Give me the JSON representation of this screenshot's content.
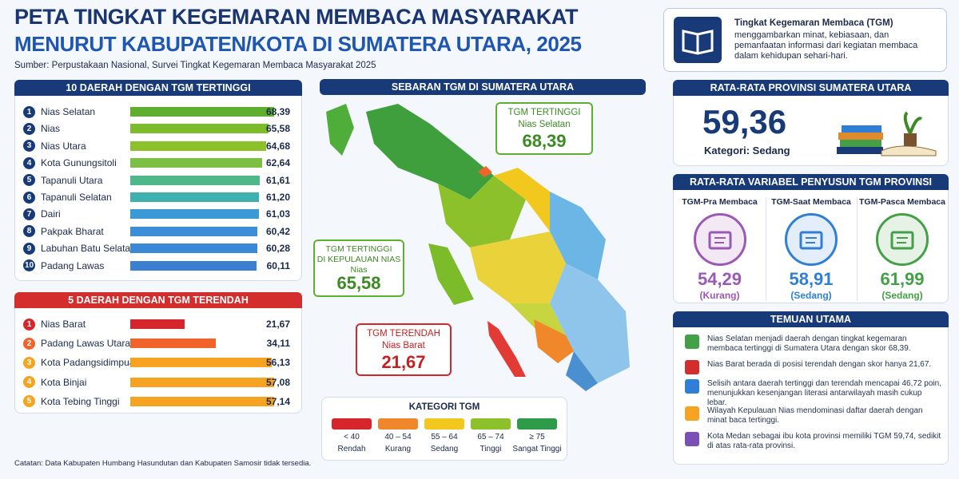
{
  "header": {
    "title_line1": "PETA TINGKAT KEGEMARAN MEMBACA MASYARAKAT",
    "title_line2": "MENURUT KABUPATEN/KOTA DI SUMATERA UTARA, 2025",
    "source": "Sumber: Perpustakaan Nasional, Survei Tingkat Kegemaran Membaca Masyarakat 2025"
  },
  "info": {
    "title": "Tingkat Kegemaran Membaca (TGM)",
    "text": "menggambarkan minat, kebiasaan, dan pemanfaatan informasi dari kegiatan membaca dalam kehidupan sehari-hari."
  },
  "chart_data": [
    {
      "type": "bar",
      "title": "10 DAERAH DENGAN TGM TERTINGGI",
      "ranks": [
        1,
        2,
        3,
        4,
        5,
        6,
        7,
        8,
        9,
        10
      ],
      "categories": [
        "Nias Selatan",
        "Nias",
        "Nias Utara",
        "Kota Gunungsitoli",
        "Tapanuli Utara",
        "Tapanuli Selatan",
        "Dairi",
        "Pakpak Bharat",
        "Labuhan Batu Selatan",
        "Padang Lawas"
      ],
      "values": [
        68.39,
        65.58,
        64.68,
        62.64,
        61.61,
        61.2,
        61.03,
        60.42,
        60.28,
        60.11
      ],
      "value_labels": [
        "68,39",
        "65,58",
        "64,68",
        "62,64",
        "61,61",
        "61,20",
        "61,03",
        "60,42",
        "60,28",
        "60,11"
      ],
      "colors": [
        "#5fae2e",
        "#7cbb2a",
        "#8cc12c",
        "#7cbf45",
        "#4fb88a",
        "#3fb0b0",
        "#3a9ad8",
        "#3a8fd8",
        "#3a88d6",
        "#3a7fd0"
      ]
    },
    {
      "type": "bar",
      "title": "5 DAERAH DENGAN TGM TERENDAH",
      "ranks": [
        1,
        2,
        3,
        4,
        5
      ],
      "categories": [
        "Nias Barat",
        "Padang Lawas Utara",
        "Kota Padangsidimpuan",
        "Kota Binjai",
        "Kota Tebing Tinggi"
      ],
      "values": [
        21.67,
        34.11,
        56.13,
        57.08,
        57.14
      ],
      "value_labels": [
        "21,67",
        "34,11",
        "56,13",
        "57,08",
        "57,14"
      ],
      "colors": [
        "#d7262b",
        "#f0632a",
        "#f5a321",
        "#f5a321",
        "#f5a321"
      ]
    }
  ],
  "map": {
    "title": "SEBARAN TGM DI SUMATERA UTARA",
    "callout_high": {
      "title": "TGM TERTINGGI",
      "region": "Nias Selatan",
      "value": "68,39"
    },
    "callout_nias": {
      "title": "TGM TERTINGGI",
      "title2": "DI KEPULAUAN NIAS",
      "region": "Nias",
      "value": "65,58"
    },
    "callout_low": {
      "title": "TGM TERENDAH",
      "region": "Nias Barat",
      "value": "21,67"
    }
  },
  "legend": {
    "title": "KATEGORI TGM",
    "items": [
      {
        "range": "< 40",
        "label": "Rendah",
        "color": "#d7262b"
      },
      {
        "range": "40 – 54",
        "label": "Kurang",
        "color": "#f0872a"
      },
      {
        "range": "55 – 64",
        "label": "Sedang",
        "color": "#f2c81f"
      },
      {
        "range": "65 – 74",
        "label": "Tinggi",
        "color": "#8cc12c"
      },
      {
        "range": "≥ 75",
        "label": "Sangat Tinggi",
        "color": "#2e9b48"
      }
    ]
  },
  "province_avg": {
    "title": "RATA-RATA PROVINSI SUMATERA UTARA",
    "value": "59,36",
    "category": "Kategori: Sedang"
  },
  "variables": {
    "title": "RATA-RATA VARIABEL PENYUSUN TGM PROVINSI",
    "items": [
      {
        "name": "TGM-Pra Membaca",
        "value": "54,29",
        "category": "(Kurang)",
        "color": "#9b59b6"
      },
      {
        "name": "TGM-Saat Membaca",
        "value": "58,91",
        "category": "(Sedang)",
        "color": "#2f7fd6"
      },
      {
        "name": "TGM-Pasca Membaca",
        "value": "61,99",
        "category": "(Sedang)",
        "color": "#43a047"
      }
    ]
  },
  "findings": {
    "title": "TEMUAN UTAMA",
    "items": [
      "Nias Selatan menjadi daerah dengan tingkat kegemaran membaca tertinggi di Sumatera Utara dengan skor 68,39.",
      "Nias Barat berada di posisi terendah dengan skor hanya 21,67.",
      "Selisih antara daerah tertinggi dan terendah mencapai 46,72 poin, menunjukkan kesenjangan literasi antarwilayah masih cukup lebar.",
      "Wilayah Kepulauan Nias mendominasi daftar daerah dengan minat baca tertinggi.",
      "Kota Medan sebagai ibu kota provinsi memiliki TGM 59,74, sedikit di atas rata-rata provinsi."
    ]
  },
  "note": "Catatan: Data Kabupaten Humbang Hasundutan dan Kabupaten Samosir tidak tersedia."
}
